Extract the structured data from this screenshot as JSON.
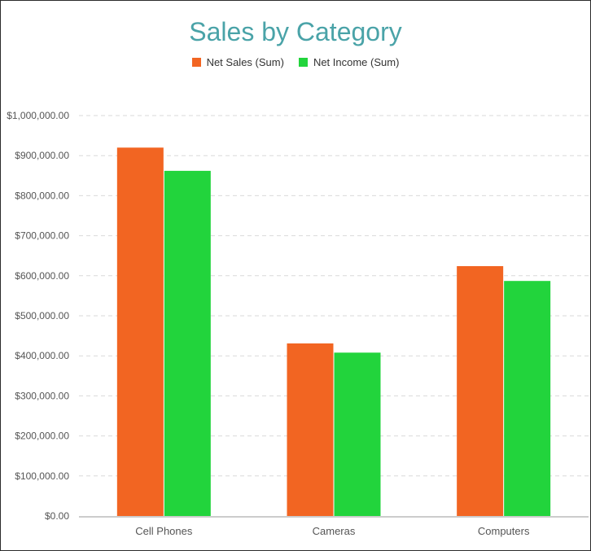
{
  "chart_data": {
    "type": "bar",
    "title": "Sales by Category",
    "xlabel": "",
    "ylabel": "",
    "categories": [
      "Cell Phones",
      "Cameras",
      "Computers"
    ],
    "series": [
      {
        "name": "Net Sales (Sum)",
        "color": "#f26522",
        "values": [
          920000,
          431000,
          624000
        ]
      },
      {
        "name": "Net Income (Sum)",
        "color": "#22d43c",
        "values": [
          862000,
          408000,
          587000
        ]
      }
    ],
    "ylim": [
      0,
      1000000
    ],
    "yticks": [
      {
        "value": 0,
        "label": "$0.00"
      },
      {
        "value": 100000,
        "label": "$100,000.00"
      },
      {
        "value": 200000,
        "label": "$200,000.00"
      },
      {
        "value": 300000,
        "label": "$300,000.00"
      },
      {
        "value": 400000,
        "label": "$400,000.00"
      },
      {
        "value": 500000,
        "label": "$500,000.00"
      },
      {
        "value": 600000,
        "label": "$600,000.00"
      },
      {
        "value": 700000,
        "label": "$700,000.00"
      },
      {
        "value": 800000,
        "label": "$800,000.00"
      },
      {
        "value": 900000,
        "label": "$900,000.00"
      },
      {
        "value": 1000000,
        "label": "$1,000,000.00"
      }
    ],
    "grid": true,
    "grid_style": "dashed",
    "legend_position": "top-center"
  },
  "style": {
    "title_color": "#4aa3a8",
    "grid_color": "#d9d9d9",
    "axis_color": "#cccccc"
  }
}
